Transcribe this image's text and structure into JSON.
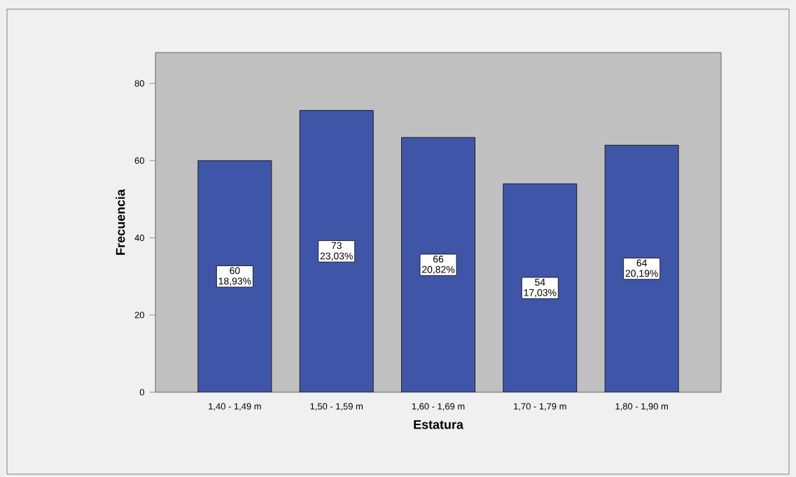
{
  "chart_data": {
    "type": "bar",
    "xlabel": "Estatura",
    "ylabel": "Frecuencia",
    "categories": [
      "1,40 - 1,49 m",
      "1,50 - 1,59 m",
      "1,60 - 1,69 m",
      "1,70 - 1,79 m",
      "1,80 - 1,90 m"
    ],
    "values": [
      60,
      73,
      66,
      54,
      64
    ],
    "value_labels": [
      "60 18,93%",
      "73 23,03%",
      "66 20,82%",
      "54 17,03%",
      "64 20,19%"
    ],
    "color": "#3f56a8",
    "ylim": [
      0,
      88
    ],
    "yticks": [
      0,
      20,
      40,
      60,
      80
    ]
  }
}
